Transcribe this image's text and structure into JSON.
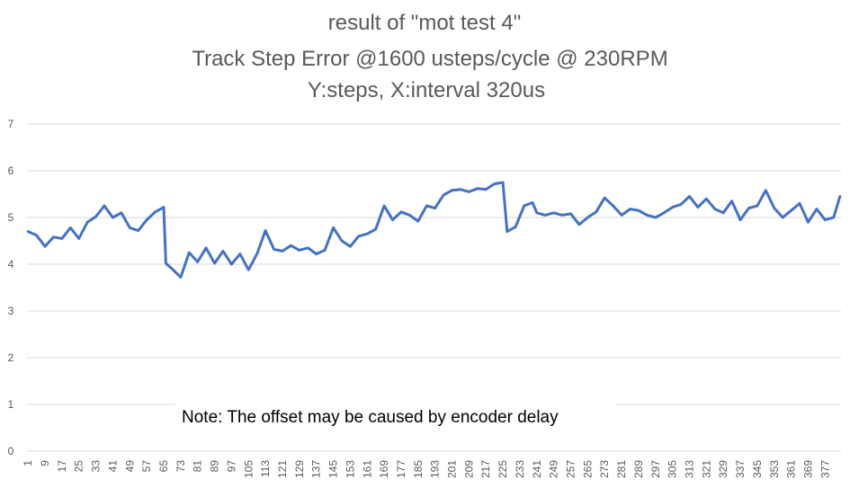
{
  "chart_data": {
    "type": "line",
    "title": [
      "result of \"mot test 4\"",
      "Track Step Error @1600 usteps/cycle @ 230RPM",
      "Y:steps, X:interval 320us"
    ],
    "xlabel": "",
    "ylabel": "",
    "ylim": [
      0,
      7
    ],
    "yticks": [
      "0",
      "1",
      "2",
      "3",
      "4",
      "5",
      "6",
      "7"
    ],
    "xticks": [
      "1",
      "9",
      "17",
      "25",
      "33",
      "41",
      "49",
      "57",
      "65",
      "73",
      "81",
      "89",
      "97",
      "105",
      "113",
      "121",
      "129",
      "137",
      "145",
      "153",
      "161",
      "169",
      "177",
      "185",
      "193",
      "201",
      "209",
      "217",
      "225",
      "233",
      "241",
      "249",
      "257",
      "265",
      "273",
      "281",
      "289",
      "297",
      "305",
      "313",
      "321",
      "329",
      "337",
      "345",
      "353",
      "361",
      "369",
      "377"
    ],
    "x_range": [
      1,
      384
    ],
    "grid": true,
    "legend": "none",
    "annotation": "Note: The offset may be caused by encoder delay",
    "series": [
      {
        "color": "#4472C4",
        "points": [
          [
            1,
            4.7
          ],
          [
            5,
            4.62
          ],
          [
            9,
            4.38
          ],
          [
            13,
            4.58
          ],
          [
            17,
            4.55
          ],
          [
            21,
            4.78
          ],
          [
            25,
            4.55
          ],
          [
            29,
            4.9
          ],
          [
            33,
            5.02
          ],
          [
            37,
            5.25
          ],
          [
            41,
            5.0
          ],
          [
            45,
            5.1
          ],
          [
            49,
            4.78
          ],
          [
            53,
            4.72
          ],
          [
            57,
            4.95
          ],
          [
            61,
            5.12
          ],
          [
            65,
            5.22
          ],
          [
            66,
            4.02
          ],
          [
            69,
            3.9
          ],
          [
            73,
            3.72
          ],
          [
            77,
            4.25
          ],
          [
            81,
            4.05
          ],
          [
            85,
            4.35
          ],
          [
            89,
            4.02
          ],
          [
            93,
            4.28
          ],
          [
            97,
            4.0
          ],
          [
            101,
            4.22
          ],
          [
            105,
            3.88
          ],
          [
            109,
            4.22
          ],
          [
            113,
            4.72
          ],
          [
            117,
            4.32
          ],
          [
            121,
            4.28
          ],
          [
            125,
            4.4
          ],
          [
            129,
            4.3
          ],
          [
            133,
            4.35
          ],
          [
            137,
            4.22
          ],
          [
            141,
            4.3
          ],
          [
            145,
            4.78
          ],
          [
            149,
            4.5
          ],
          [
            153,
            4.38
          ],
          [
            157,
            4.6
          ],
          [
            161,
            4.65
          ],
          [
            165,
            4.75
          ],
          [
            169,
            5.25
          ],
          [
            173,
            4.95
          ],
          [
            177,
            5.12
          ],
          [
            181,
            5.05
          ],
          [
            185,
            4.92
          ],
          [
            189,
            5.25
          ],
          [
            193,
            5.2
          ],
          [
            197,
            5.48
          ],
          [
            201,
            5.58
          ],
          [
            205,
            5.6
          ],
          [
            209,
            5.55
          ],
          [
            213,
            5.62
          ],
          [
            217,
            5.6
          ],
          [
            221,
            5.72
          ],
          [
            225,
            5.75
          ],
          [
            227,
            4.7
          ],
          [
            231,
            4.8
          ],
          [
            235,
            5.25
          ],
          [
            239,
            5.32
          ],
          [
            241,
            5.1
          ],
          [
            245,
            5.05
          ],
          [
            249,
            5.1
          ],
          [
            253,
            5.05
          ],
          [
            257,
            5.08
          ],
          [
            261,
            4.85
          ],
          [
            265,
            5.0
          ],
          [
            269,
            5.12
          ],
          [
            273,
            5.42
          ],
          [
            277,
            5.25
          ],
          [
            281,
            5.05
          ],
          [
            285,
            5.18
          ],
          [
            289,
            5.15
          ],
          [
            293,
            5.05
          ],
          [
            297,
            5.0
          ],
          [
            301,
            5.1
          ],
          [
            305,
            5.22
          ],
          [
            309,
            5.28
          ],
          [
            313,
            5.45
          ],
          [
            317,
            5.22
          ],
          [
            321,
            5.4
          ],
          [
            325,
            5.18
          ],
          [
            329,
            5.1
          ],
          [
            333,
            5.35
          ],
          [
            337,
            4.95
          ],
          [
            341,
            5.2
          ],
          [
            345,
            5.25
          ],
          [
            349,
            5.58
          ],
          [
            353,
            5.2
          ],
          [
            357,
            5.0
          ],
          [
            361,
            5.15
          ],
          [
            365,
            5.3
          ],
          [
            369,
            4.9
          ],
          [
            373,
            5.18
          ],
          [
            377,
            4.95
          ],
          [
            381,
            5.0
          ],
          [
            384,
            5.45
          ]
        ]
      }
    ]
  }
}
